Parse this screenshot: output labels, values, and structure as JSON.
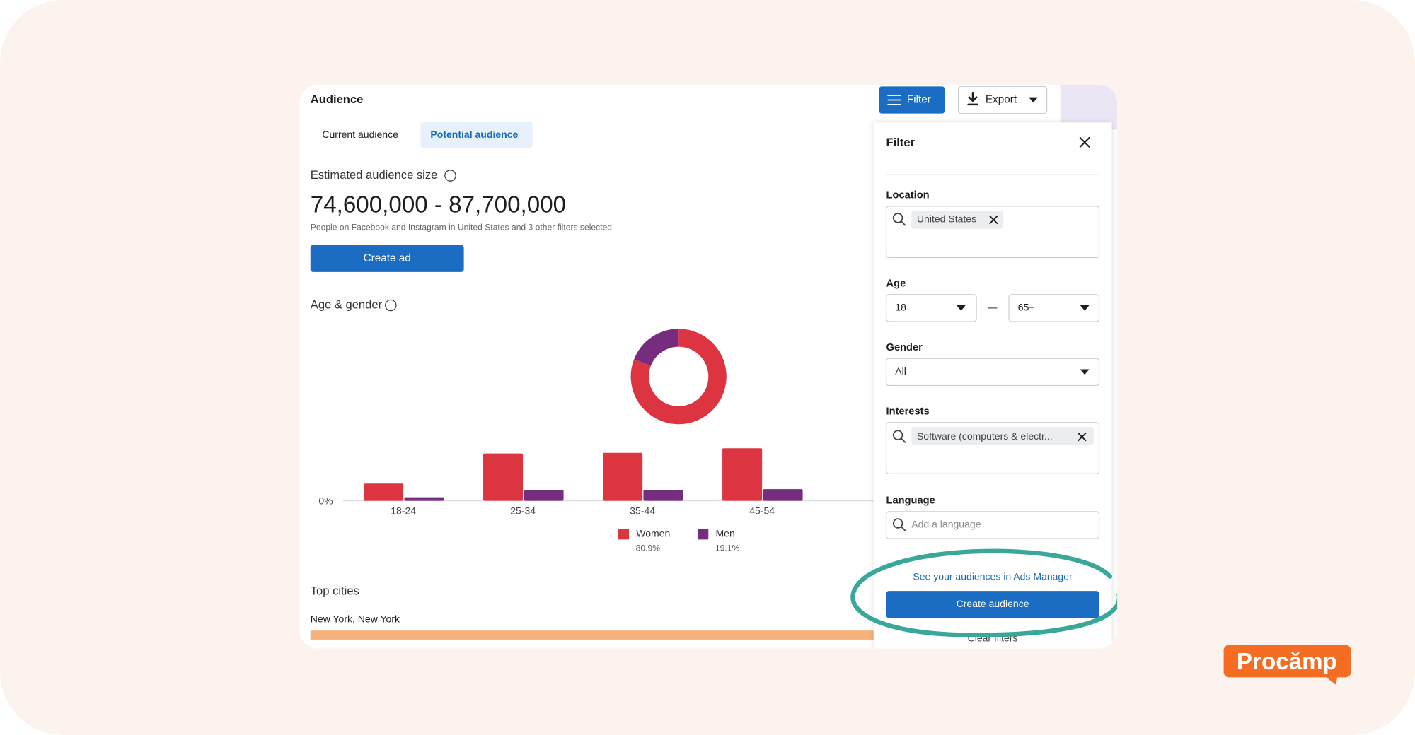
{
  "header": {
    "title": "Audience",
    "filter_button": "Filter",
    "export_button": "Export"
  },
  "tabs": [
    "Current audience",
    "Potential audience"
  ],
  "estimate": {
    "label": "Estimated audience size",
    "range": "74,600,000 - 87,700,000",
    "note": "People on Facebook and Instagram in United States and 3 other filters selected",
    "button": "Create ad"
  },
  "section_title": "Age & gender",
  "chart_data": [
    {
      "type": "bar",
      "categories": [
        "18-24",
        "25-34",
        "35-44",
        "45-54"
      ],
      "series": [
        {
          "name": "Women",
          "color": "#dc3541",
          "values": [
            5.3,
            14.6,
            14.8,
            16.2
          ]
        },
        {
          "name": "Men",
          "color": "#772d7e",
          "values": [
            1.1,
            3.4,
            3.4,
            3.6
          ]
        }
      ],
      "ylim": [
        0,
        20
      ],
      "yticks": [
        {
          "value": 0,
          "label": "0%"
        }
      ]
    },
    {
      "type": "pie",
      "values": [
        80.9,
        19.1
      ],
      "value_labels": [
        "80.9%",
        "19.1%"
      ],
      "colors": [
        "#dc3541",
        "#772d7e"
      ]
    }
  ],
  "top_cities": {
    "title": "Top cities",
    "cities": [
      "New York, New York"
    ]
  },
  "filter_panel": {
    "title": "Filter",
    "location": {
      "label": "Location",
      "chip": "United States"
    },
    "age": {
      "label": "Age",
      "min": "18",
      "max": "65+"
    },
    "gender": {
      "label": "Gender",
      "value": "All"
    },
    "interests": {
      "label": "Interests",
      "chip": "Software (computers & electr..."
    },
    "language": {
      "label": "Language",
      "placeholder": "Add a language"
    },
    "link": "See your audiences in Ads Manager",
    "create_button": "Create audience",
    "clear_link": "Clear filters"
  },
  "logo": "Procămp"
}
